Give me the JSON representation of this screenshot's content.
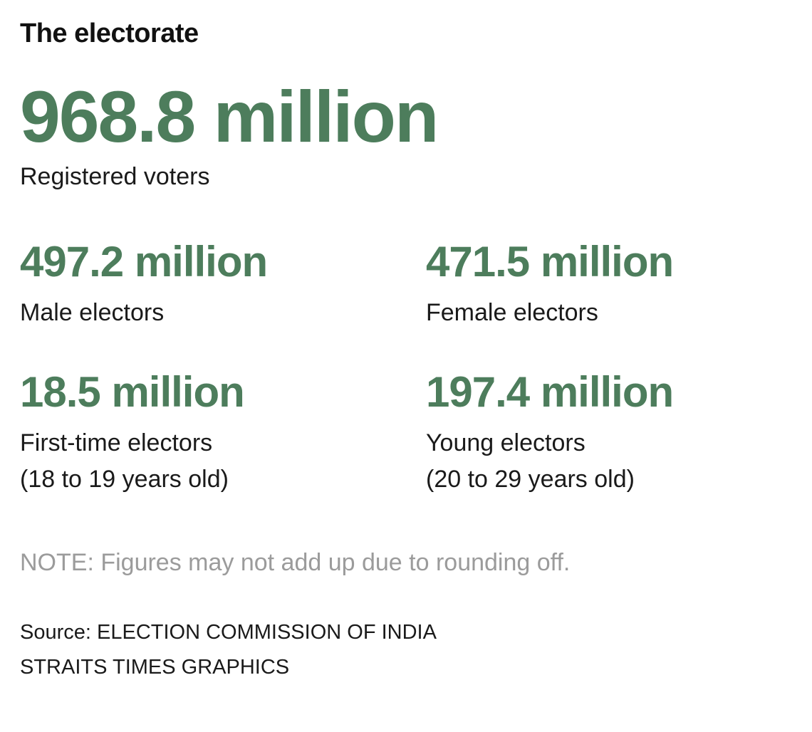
{
  "title": "The electorate",
  "colors": {
    "accent_green": "#4d7d5c",
    "note_gray": "#9b9b9b",
    "text": "#1a1a1a"
  },
  "hero": {
    "value": "968.8 million",
    "label": "Registered voters"
  },
  "stats": [
    {
      "value": "497.2 million",
      "label": "Male electors",
      "sublabel": ""
    },
    {
      "value": "471.5 million",
      "label": "Female electors",
      "sublabel": ""
    },
    {
      "value": "18.5 million",
      "label": "First-time electors",
      "sublabel": "(18 to 19 years old)"
    },
    {
      "value": "197.4 million",
      "label": "Young electors",
      "sublabel": "(20 to 29 years old)"
    }
  ],
  "note": "NOTE: Figures may not add up due to rounding off.",
  "source": {
    "line1": "Source: ELECTION COMMISSION OF INDIA",
    "line2": "STRAITS TIMES GRAPHICS"
  },
  "chart_data": {
    "type": "table",
    "title": "The electorate",
    "unit": "million voters",
    "rows": [
      {
        "label": "Registered voters",
        "value": 968.8
      },
      {
        "label": "Male electors",
        "value": 497.2
      },
      {
        "label": "Female electors",
        "value": 471.5
      },
      {
        "label": "First-time electors (18 to 19 years old)",
        "value": 18.5
      },
      {
        "label": "Young electors (20 to 29 years old)",
        "value": 197.4
      }
    ],
    "note": "NOTE: Figures may not add up due to rounding off.",
    "source": "ELECTION COMMISSION OF INDIA / STRAITS TIMES GRAPHICS"
  }
}
